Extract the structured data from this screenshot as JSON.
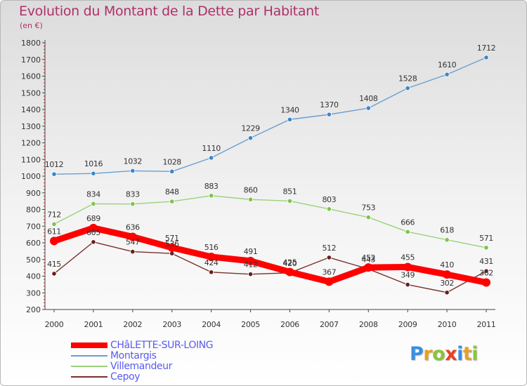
{
  "title": "Evolution du Montant de la Dette par Habitant",
  "unit": "(en €)",
  "logo": {
    "letters": [
      {
        "ch": "P",
        "color": "#3a8fe0"
      },
      {
        "ch": "r",
        "color": "#e8a020"
      },
      {
        "ch": "o",
        "color": "#8ac43a"
      },
      {
        "ch": "x",
        "color": "#e84020"
      },
      {
        "ch": "i",
        "color": "#3a8fe0"
      },
      {
        "ch": "t",
        "color": "#e8a020"
      },
      {
        "ch": "i",
        "color": "#8ac43a"
      }
    ]
  },
  "chart_data": {
    "type": "line",
    "x": [
      "2000",
      "2001",
      "2002",
      "2003",
      "2004",
      "2005",
      "2006",
      "2007",
      "2008",
      "2009",
      "2010",
      "2011"
    ],
    "ylim": [
      200,
      1800
    ],
    "yticks": [
      200,
      300,
      400,
      500,
      600,
      700,
      800,
      900,
      1000,
      1100,
      1200,
      1300,
      1400,
      1500,
      1600,
      1700,
      1800
    ],
    "grid": false,
    "legend_position": "bottom-left",
    "series": [
      {
        "name": "Montargis",
        "color": "#6a9fd0",
        "marker_color": "#3d85c6",
        "emphasis": false,
        "values": [
          1012,
          1016,
          1032,
          1028,
          1110,
          1229,
          1340,
          1370,
          1408,
          1528,
          1610,
          1712
        ]
      },
      {
        "name": "Villemandeur",
        "color": "#9ad27a",
        "marker_color": "#7cc44a",
        "emphasis": false,
        "values": [
          712,
          834,
          833,
          848,
          883,
          860,
          851,
          803,
          753,
          666,
          618,
          571
        ]
      },
      {
        "name": "Cepoy",
        "color": "#7a3030",
        "marker_color": "#6a1e1e",
        "emphasis": false,
        "values": [
          415,
          605,
          547,
          536,
          424,
          412,
          420,
          512,
          443,
          349,
          302,
          431
        ]
      },
      {
        "name": "CHâLETTE-SUR-LOING",
        "color": "#ff0000",
        "marker_color": "#ff0000",
        "emphasis": true,
        "values": [
          611,
          689,
          636,
          571,
          516,
          491,
          425,
          367,
          452,
          455,
          410,
          362
        ]
      }
    ]
  }
}
